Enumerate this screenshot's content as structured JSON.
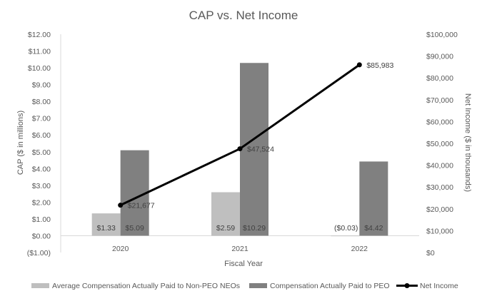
{
  "chart_data": {
    "type": "bar",
    "title": "CAP vs. Net Income",
    "xlabel": "Fiscal Year",
    "ylabel": "CAP ($ in millions)",
    "y2label": "Net Income ($ in thousands)",
    "categories": [
      "2020",
      "2021",
      "2022"
    ],
    "ylim": [
      -1,
      12
    ],
    "y2lim": [
      0,
      100000
    ],
    "y_ticks": [
      "($1.00)",
      "$0.00",
      "$1.00",
      "$2.00",
      "$3.00",
      "$4.00",
      "$5.00",
      "$6.00",
      "$7.00",
      "$8.00",
      "$9.00",
      "$10.00",
      "$11.00",
      "$12.00"
    ],
    "y2_ticks": [
      "$0",
      "$10,000",
      "$20,000",
      "$30,000",
      "$40,000",
      "$50,000",
      "$60,000",
      "$70,000",
      "$80,000",
      "$90,000",
      "$100,000"
    ],
    "grid": false,
    "legend_position": "bottom",
    "series": [
      {
        "name": "Average Compensation Actually Paid to Non-PEO NEOs",
        "kind": "bar",
        "axis": "left",
        "color": "#bfbfbf",
        "values": [
          1.33,
          2.59,
          -0.03
        ],
        "labels": [
          "$1.33",
          "$2.59",
          "($0.03)"
        ]
      },
      {
        "name": "Compensation Actually Paid to PEO",
        "kind": "bar",
        "axis": "left",
        "color": "#808080",
        "values": [
          5.09,
          10.29,
          4.42
        ],
        "labels": [
          "$5.09",
          "$10.29",
          "$4.42"
        ]
      },
      {
        "name": "Net Income",
        "kind": "line",
        "axis": "right",
        "color": "#000000",
        "values": [
          21677,
          47524,
          85983
        ],
        "labels": [
          "$21,677",
          "$47,524",
          "$85,983"
        ]
      }
    ]
  }
}
